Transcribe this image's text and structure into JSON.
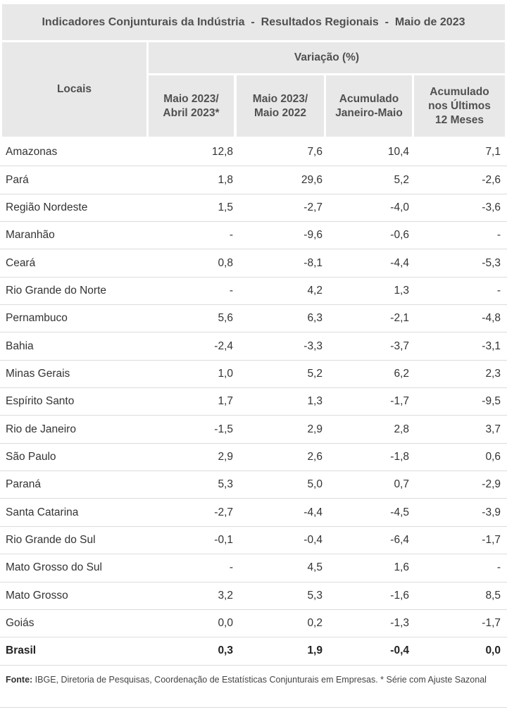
{
  "title": "Indicadores Conjunturais da Indústria  -  Resultados Regionais  -  Maio de 2023",
  "header": {
    "locais": "Locais",
    "variacao": "Variação (%)",
    "col1": "Maio 2023/ Abril 2023*",
    "col2": "Maio 2023/ Maio 2022",
    "col3": "Acumulado Janeiro-Maio",
    "col4": "Acumulado nos Últimos 12 Meses"
  },
  "rows": [
    {
      "local": "Amazonas",
      "v": [
        "12,8",
        "7,6",
        "10,4",
        "7,1"
      ]
    },
    {
      "local": "Pará",
      "v": [
        "1,8",
        "29,6",
        "5,2",
        "-2,6"
      ]
    },
    {
      "local": "Região Nordeste",
      "v": [
        "1,5",
        "-2,7",
        "-4,0",
        "-3,6"
      ]
    },
    {
      "local": "Maranhão",
      "v": [
        "-",
        "-9,6",
        "-0,6",
        "-"
      ]
    },
    {
      "local": "Ceará",
      "v": [
        "0,8",
        "-8,1",
        "-4,4",
        "-5,3"
      ]
    },
    {
      "local": "Rio Grande do Norte",
      "v": [
        "-",
        "4,2",
        "1,3",
        "-"
      ]
    },
    {
      "local": "Pernambuco",
      "v": [
        "5,6",
        "6,3",
        "-2,1",
        "-4,8"
      ]
    },
    {
      "local": "Bahia",
      "v": [
        "-2,4",
        "-3,3",
        "-3,7",
        "-3,1"
      ]
    },
    {
      "local": "Minas Gerais",
      "v": [
        "1,0",
        "5,2",
        "6,2",
        "2,3"
      ]
    },
    {
      "local": "Espírito Santo",
      "v": [
        "1,7",
        "1,3",
        "-1,7",
        "-9,5"
      ]
    },
    {
      "local": "Rio de Janeiro",
      "v": [
        "-1,5",
        "2,9",
        "2,8",
        "3,7"
      ]
    },
    {
      "local": "São Paulo",
      "v": [
        "2,9",
        "2,6",
        "-1,8",
        "0,6"
      ]
    },
    {
      "local": "Paraná",
      "v": [
        "5,3",
        "5,0",
        "0,7",
        "-2,9"
      ]
    },
    {
      "local": "Santa Catarina",
      "v": [
        "-2,7",
        "-4,4",
        "-4,5",
        "-3,9"
      ]
    },
    {
      "local": "Rio Grande do Sul",
      "v": [
        "-0,1",
        "-0,4",
        "-6,4",
        "-1,7"
      ]
    },
    {
      "local": "Mato Grosso do Sul",
      "v": [
        "-",
        "4,5",
        "1,6",
        "-"
      ]
    },
    {
      "local": "Mato Grosso",
      "v": [
        "3,2",
        "5,3",
        "-1,6",
        "8,5"
      ]
    },
    {
      "local": "Goiás",
      "v": [
        "0,0",
        "0,2",
        "-1,3",
        "-1,7"
      ]
    },
    {
      "local": "Brasil",
      "v": [
        "0,3",
        "1,9",
        "-0,4",
        "0,0"
      ],
      "total": true
    }
  ],
  "source": {
    "label": "Fonte:",
    "text": " IBGE, Diretoria de Pesquisas, Coordenação de Estatísticas Conjunturais em Empresas.  * Série com Ajuste Sazonal"
  }
}
